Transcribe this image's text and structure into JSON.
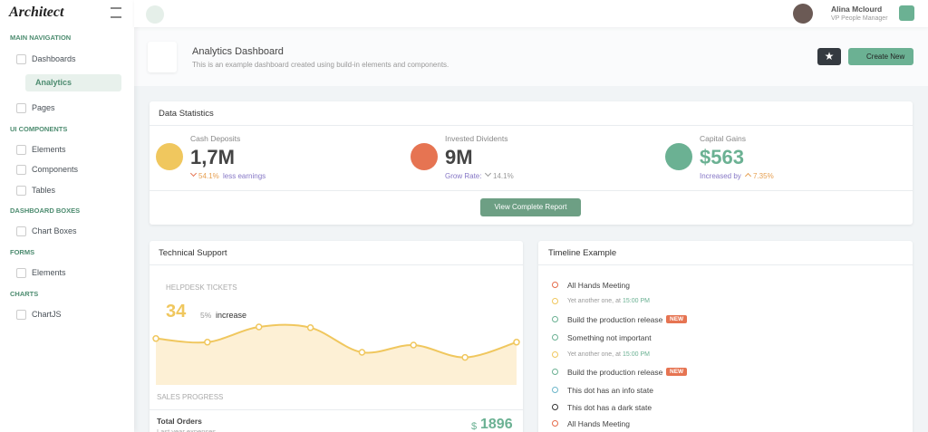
{
  "sidebar": {
    "logo": "Architect",
    "sections": [
      {
        "title": "MAIN NAVIGATION",
        "items": [
          "Dashboards",
          "Analytics",
          "Pages"
        ]
      },
      {
        "title": "UI COMPONENTS",
        "items": [
          "Elements",
          "Components",
          "Tables"
        ]
      },
      {
        "title": "DASHBOARD BOXES",
        "items": [
          "Chart Boxes"
        ]
      },
      {
        "title": "FORMS",
        "items": [
          "Elements"
        ]
      },
      {
        "title": "CHARTS",
        "items": [
          "ChartJS"
        ]
      }
    ]
  },
  "header": {
    "user_name": "Alina Mclourd",
    "user_role": "VP People Manager"
  },
  "page_title": {
    "title": "Analytics Dashboard",
    "subtitle": "This is an example dashboard created using build-in elements and components.",
    "button": "Create New"
  },
  "data_statistics": {
    "title": "Data Statistics",
    "stats": [
      {
        "label": "Cash Deposits",
        "value": "1,7M",
        "change": "54.1%",
        "note": "less earnings"
      },
      {
        "label": "Invested Dividents",
        "value": "9M",
        "note": "Grow Rate:",
        "change": "14.1%"
      },
      {
        "label": "Capital Gains",
        "value": "$563",
        "note": "Increased by",
        "change": "7.35%"
      }
    ],
    "button": "View Complete Report"
  },
  "technical_support": {
    "title": "Technical Support",
    "subtitle": "HELPDESK TICKETS",
    "value": "34",
    "change": "5%",
    "change_label": "increase",
    "sparkline": {
      "values": [
        64,
        59,
        80,
        79,
        45,
        55,
        38,
        59
      ],
      "ylim": [
        0,
        100
      ],
      "color": "#f0c75e"
    },
    "footer_title": "SALES PROGRESS",
    "total_orders": "Total Orders",
    "total_orders_note": "Last year expenses",
    "currency": "$",
    "total": "1896"
  },
  "timeline": {
    "title": "Timeline Example",
    "items": [
      {
        "text": "All Hands Meeting",
        "color": "#e56b4a"
      },
      {
        "text": "Yet another one, at",
        "time": "15:00 PM",
        "color": "#f0c75e"
      },
      {
        "text": "Build the production release",
        "color": "#6bb193",
        "badge": "NEW"
      },
      {
        "text": "Something not important",
        "color": "#6bb193"
      },
      {
        "text": "Yet another one, at",
        "time": "15:00 PM",
        "color": "#f0c75e"
      },
      {
        "text": "Build the production release",
        "color": "#6bb193",
        "badge": "NEW"
      },
      {
        "text": "This dot has an info state",
        "color": "#6cb6c9"
      },
      {
        "text": "This dot has a dark state",
        "color": "#333333"
      },
      {
        "text": "All Hands Meeting",
        "color": "#e56b4a"
      }
    ]
  }
}
